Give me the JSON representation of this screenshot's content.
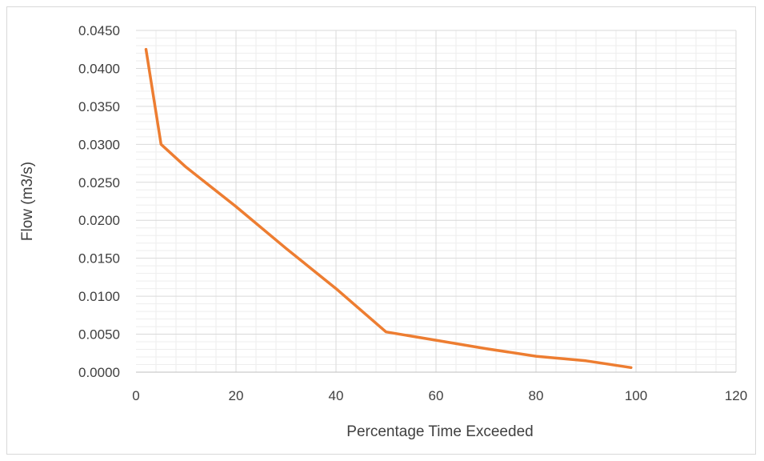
{
  "chart_data": {
    "type": "line",
    "title": "",
    "xlabel": "Percentage Time Exceeded",
    "ylabel": "Flow (m3/s)",
    "xlim": [
      0,
      120
    ],
    "ylim": [
      0,
      0.045
    ],
    "x_ticks": [
      "0",
      "20",
      "40",
      "60",
      "80",
      "100",
      "120"
    ],
    "y_ticks": [
      "0.0000",
      "0.0050",
      "0.0100",
      "0.0150",
      "0.0200",
      "0.0250",
      "0.0300",
      "0.0350",
      "0.0400",
      "0.0450"
    ],
    "grid": true,
    "legend": "none",
    "series": [
      {
        "color": "#ed7d31",
        "x": [
          2,
          5,
          10,
          20,
          30,
          40,
          50,
          60,
          70,
          80,
          90,
          99
        ],
        "y": [
          0.0425,
          0.03,
          0.027,
          0.0218,
          0.0163,
          0.011,
          0.0053,
          0.0042,
          0.0031,
          0.0021,
          0.0015,
          0.0006
        ]
      }
    ]
  }
}
